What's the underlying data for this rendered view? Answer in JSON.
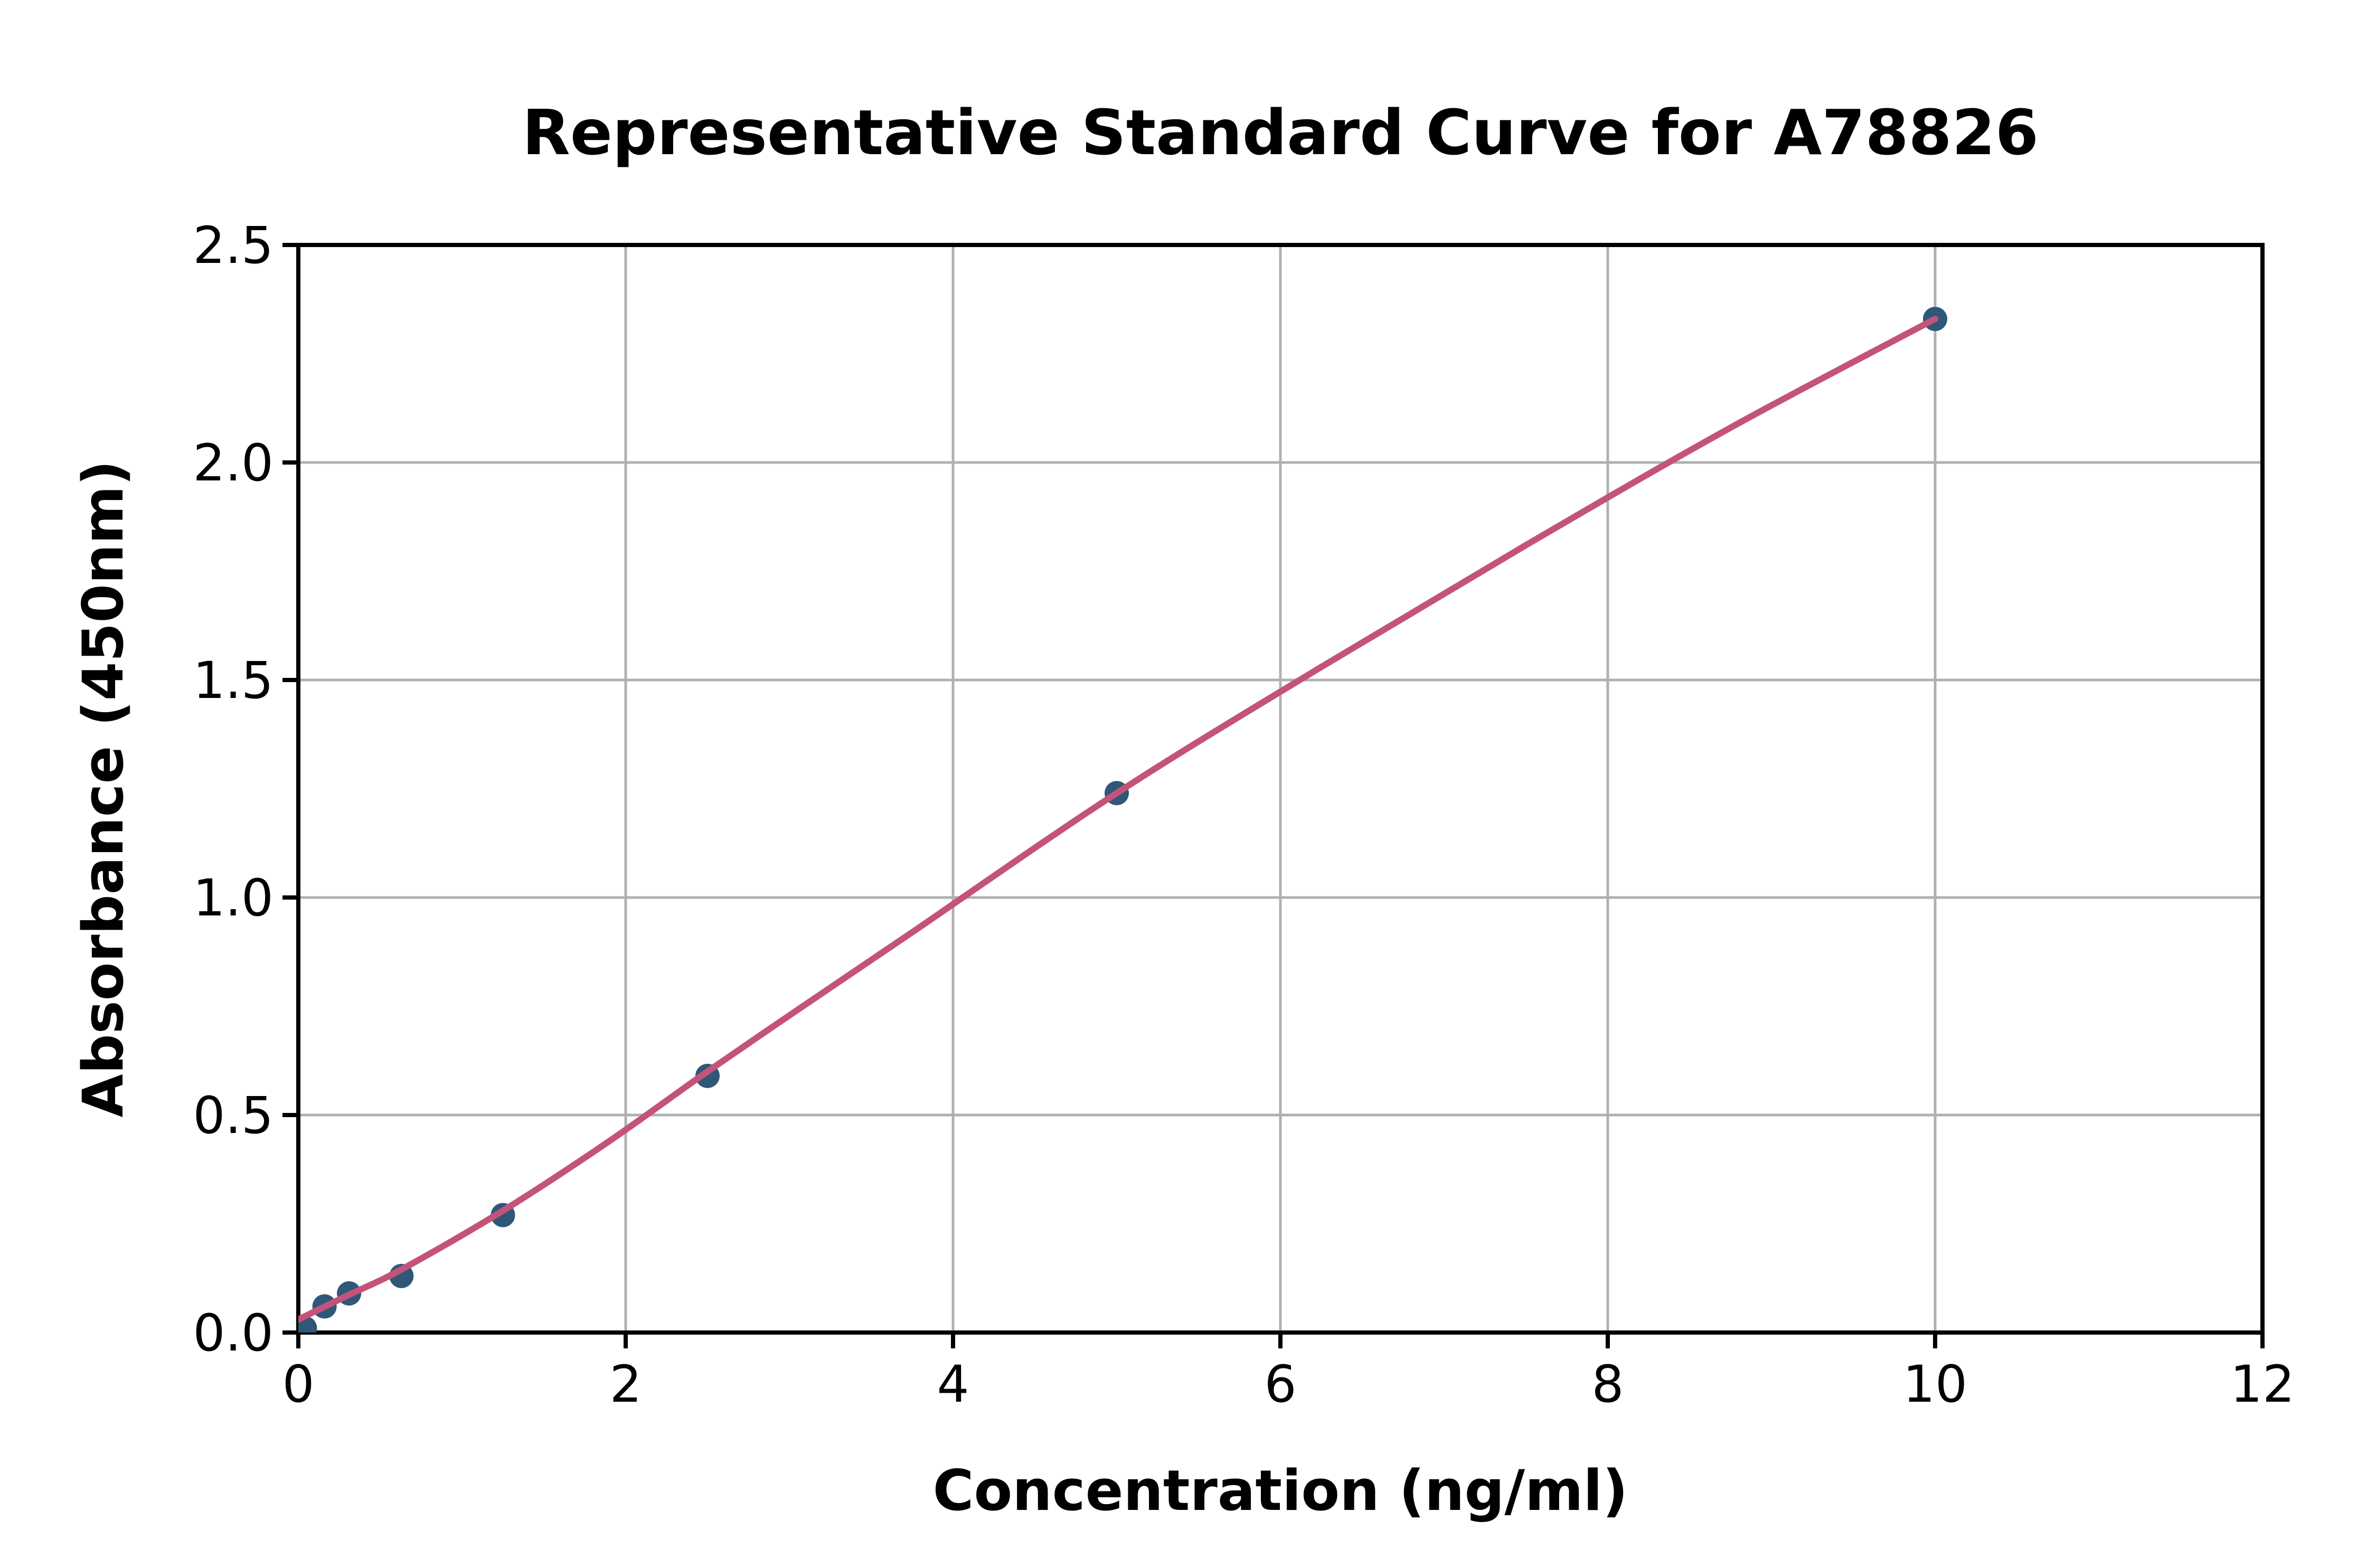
{
  "chart_data": {
    "type": "scatter",
    "title": "Representative Standard Curve for A78826",
    "xlabel": "Concentration (ng/ml)",
    "ylabel": "Absorbance (450nm)",
    "xlim": [
      0,
      12
    ],
    "ylim": [
      0,
      2.5
    ],
    "x_ticks": [
      0,
      2,
      4,
      6,
      8,
      10,
      12
    ],
    "x_tick_labels": [
      "0",
      "2",
      "4",
      "6",
      "8",
      "10",
      "12"
    ],
    "y_ticks": [
      0.0,
      0.5,
      1.0,
      1.5,
      2.0,
      2.5
    ],
    "y_tick_labels": [
      "0.0",
      "0.5",
      "1.0",
      "1.5",
      "2.0",
      "2.5"
    ],
    "grid": true,
    "grid_x_values": [
      2,
      4,
      6,
      8,
      10
    ],
    "grid_y_values": [
      0.5,
      1.0,
      1.5,
      2.0
    ],
    "legend": "none",
    "series": [
      {
        "name": "standard-points",
        "style": "scatter",
        "points": [
          [
            0.04,
            0.01
          ],
          [
            0.16,
            0.06
          ],
          [
            0.31,
            0.09
          ],
          [
            0.63,
            0.13
          ],
          [
            1.25,
            0.27
          ],
          [
            2.5,
            0.59
          ],
          [
            5.0,
            1.24
          ],
          [
            10.0,
            2.33
          ]
        ]
      },
      {
        "name": "fitted-curve",
        "style": "line",
        "points": [
          [
            0.0,
            0.03
          ],
          [
            0.3,
            0.085
          ],
          [
            0.63,
            0.145
          ],
          [
            1.25,
            0.28
          ],
          [
            1.9,
            0.44
          ],
          [
            2.5,
            0.6
          ],
          [
            3.2,
            0.78
          ],
          [
            3.75,
            0.92
          ],
          [
            5.0,
            1.24
          ],
          [
            6.25,
            1.53
          ],
          [
            7.5,
            1.81
          ],
          [
            8.75,
            2.08
          ],
          [
            10.0,
            2.33
          ]
        ]
      }
    ],
    "colors": {
      "marker": "#2F5878",
      "line": "#C4537A",
      "grid": "#B0B0B0",
      "axis": "#000000",
      "background": "#FFFFFF"
    }
  }
}
